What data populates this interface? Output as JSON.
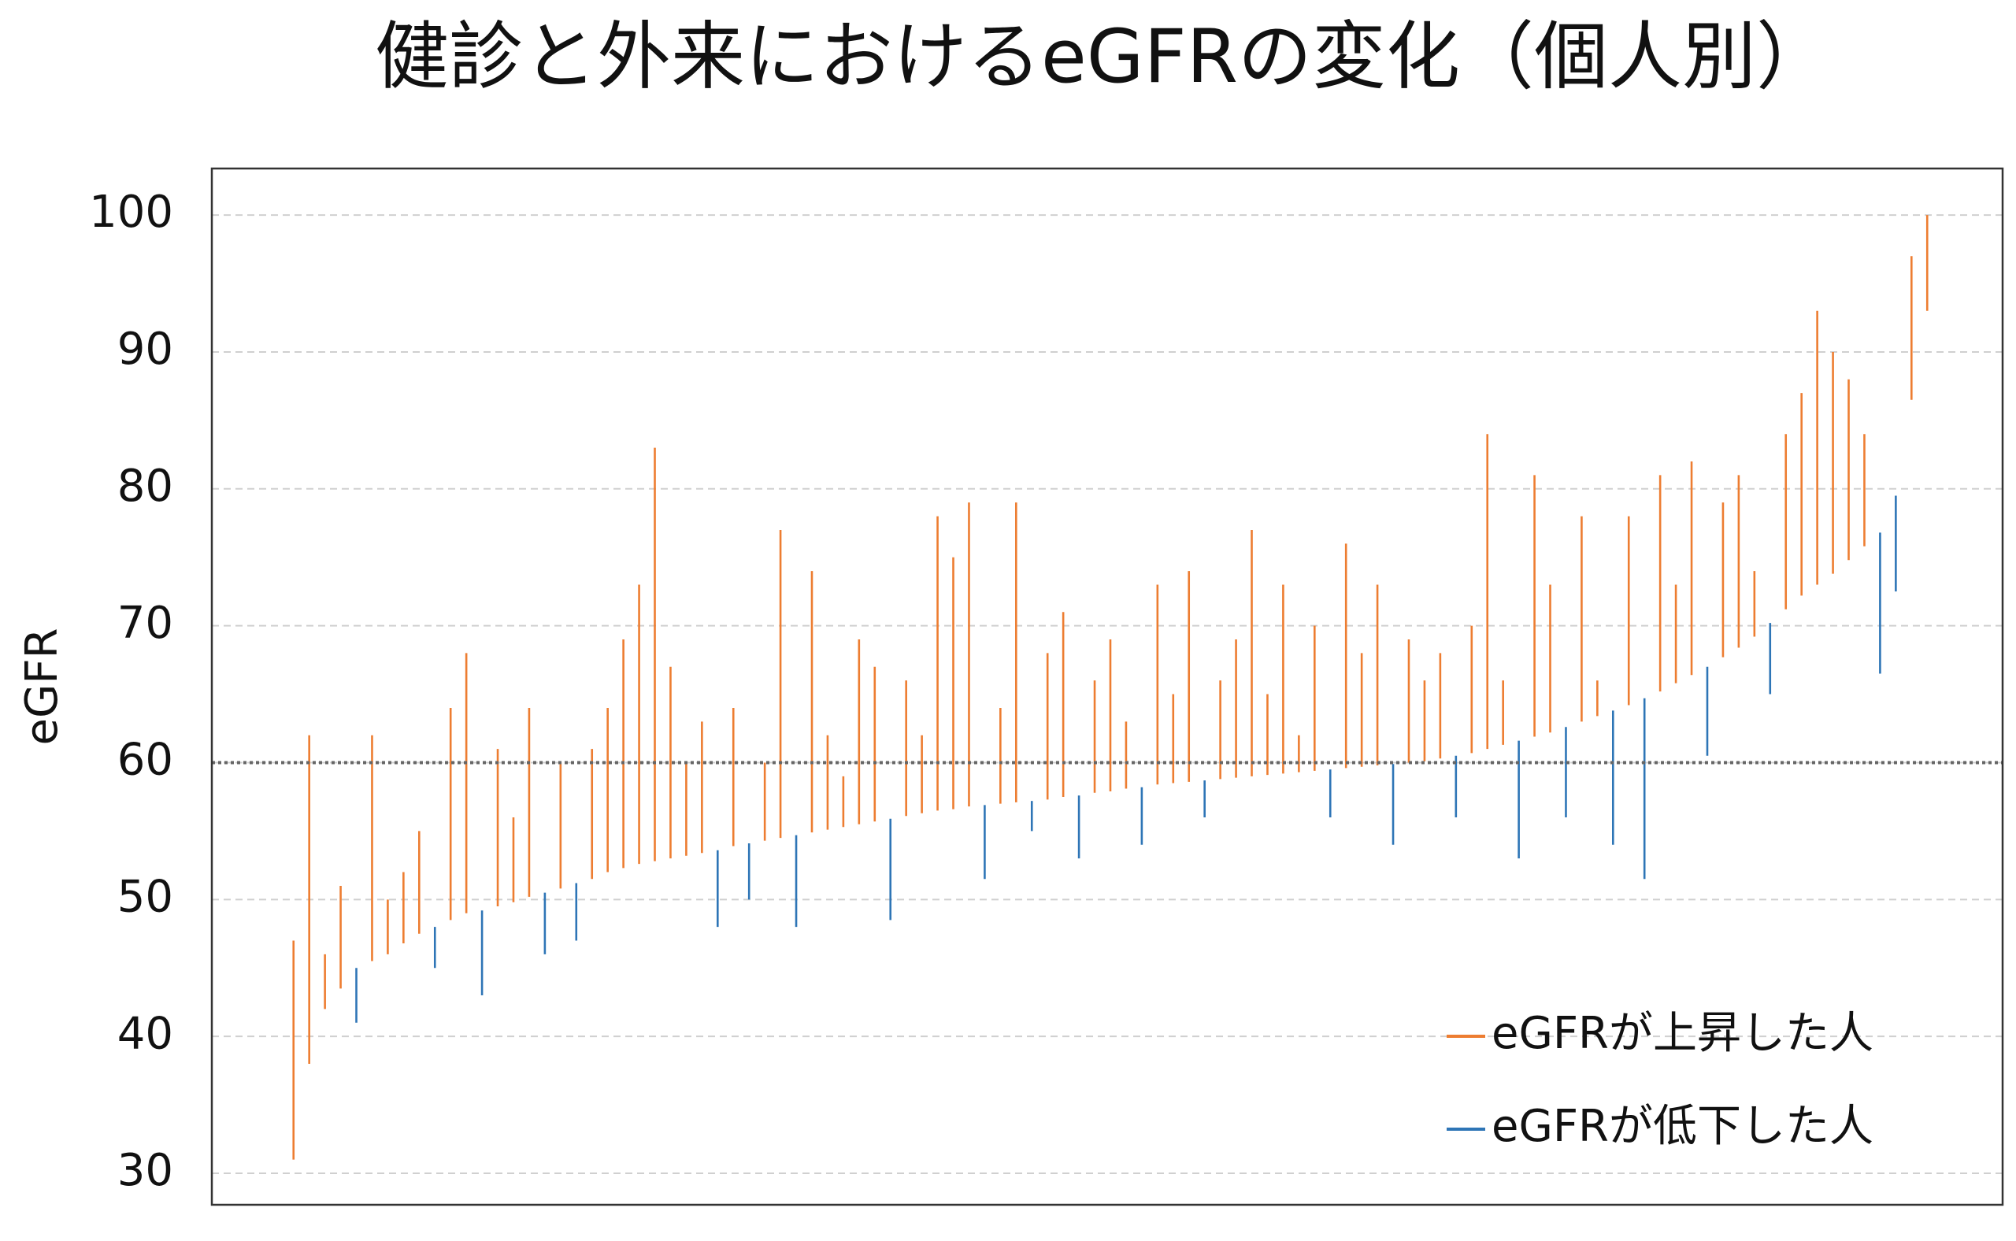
{
  "chart_data": {
    "type": "range",
    "title": "健診と外来におけるeGFRの変化（個人別）",
    "y_label": "eGFR",
    "x": [
      0,
      5,
      10,
      15,
      20,
      25,
      30,
      35,
      40,
      45,
      50,
      55,
      60,
      65,
      70,
      75,
      80,
      85,
      90,
      95,
      100,
      105,
      110,
      115,
      120,
      125,
      130,
      135,
      140,
      145,
      150,
      155,
      160,
      165,
      170,
      175,
      180,
      185,
      190,
      195,
      200,
      205,
      210,
      215,
      220,
      225,
      230,
      235,
      240,
      245,
      250,
      255,
      260,
      265,
      270,
      275,
      280,
      285,
      290,
      295,
      300,
      305,
      310,
      315,
      320,
      325,
      330,
      335,
      340,
      345,
      350,
      355,
      360,
      365,
      370,
      375,
      380,
      385,
      390,
      395,
      400,
      405,
      410,
      415,
      420,
      425,
      430,
      435,
      440,
      445,
      450,
      455,
      460,
      465,
      470,
      475,
      480,
      485,
      490,
      495,
      500,
      505,
      510,
      515,
      520
    ],
    "baseline": [
      31,
      38,
      42,
      43.5,
      45,
      45.5,
      46,
      46.8,
      47.5,
      48,
      48.5,
      49,
      49.2,
      49.5,
      49.8,
      50.2,
      50.5,
      50.8,
      51.2,
      51.5,
      52,
      52.3,
      52.6,
      52.8,
      53,
      53.2,
      53.4,
      53.6,
      53.9,
      54.1,
      54.3,
      54.5,
      54.7,
      54.9,
      55.1,
      55.3,
      55.5,
      55.7,
      55.9,
      56.1,
      56.3,
      56.5,
      56.6,
      56.8,
      56.9,
      57,
      57.1,
      57.2,
      57.3,
      57.5,
      57.6,
      57.8,
      57.9,
      58.1,
      58.2,
      58.4,
      58.5,
      58.6,
      58.7,
      58.8,
      58.9,
      59,
      59.1,
      59.2,
      59.3,
      59.4,
      59.5,
      59.6,
      59.7,
      59.8,
      59.9,
      60,
      60.1,
      60.3,
      60.5,
      60.7,
      61,
      61.3,
      61.6,
      61.9,
      62.2,
      62.6,
      63,
      63.4,
      63.8,
      64.2,
      64.7,
      65.2,
      65.8,
      66.4,
      67,
      67.7,
      68.4,
      69.2,
      70.2,
      71.2,
      72.2,
      73,
      73.8,
      74.8,
      75.8,
      76.8,
      79.5,
      86.5,
      93
    ],
    "series": [
      {
        "name": "eGFRが上昇した人",
        "color": "#ed7d31",
        "values": [
          47,
          62,
          46,
          51,
          null,
          62,
          50,
          52,
          55,
          null,
          64,
          68,
          null,
          61,
          56,
          64,
          null,
          60,
          null,
          61,
          64,
          69,
          73,
          83,
          67,
          60,
          63,
          null,
          64,
          null,
          60,
          77,
          null,
          74,
          62,
          59,
          69,
          67,
          null,
          66,
          62,
          78,
          75,
          79,
          null,
          64,
          79,
          null,
          68,
          71,
          null,
          66,
          69,
          63,
          null,
          73,
          65,
          74,
          null,
          66,
          69,
          77,
          65,
          73,
          62,
          70,
          null,
          76,
          68,
          73,
          null,
          69,
          66,
          68,
          null,
          70,
          84,
          66,
          null,
          81,
          73,
          null,
          78,
          66,
          null,
          78,
          null,
          81,
          73,
          82,
          null,
          79,
          81,
          74,
          null,
          84,
          87,
          93,
          90,
          88,
          84,
          null,
          null,
          97,
          100
        ]
      },
      {
        "name": "eGFRが低下した人",
        "color": "#2e75b6",
        "values": [
          null,
          null,
          null,
          null,
          41,
          null,
          null,
          null,
          null,
          45,
          null,
          null,
          43,
          null,
          null,
          null,
          46,
          null,
          47,
          null,
          null,
          null,
          null,
          null,
          null,
          null,
          null,
          48,
          null,
          50,
          null,
          null,
          48,
          null,
          null,
          null,
          null,
          null,
          48.5,
          null,
          null,
          null,
          null,
          null,
          51.5,
          null,
          null,
          55,
          null,
          null,
          53,
          null,
          null,
          null,
          54,
          null,
          null,
          null,
          56,
          null,
          null,
          null,
          null,
          null,
          null,
          null,
          56,
          null,
          null,
          null,
          54,
          null,
          null,
          null,
          56,
          null,
          null,
          null,
          53,
          null,
          null,
          56,
          null,
          null,
          54,
          null,
          51.5,
          null,
          null,
          null,
          60.5,
          null,
          null,
          null,
          65,
          null,
          null,
          null,
          null,
          null,
          null,
          66.5,
          72.5,
          null,
          null
        ]
      }
    ],
    "xlim": [
      -26,
      544
    ],
    "ylim": [
      27.7,
      103.4
    ],
    "yticks": [
      30,
      40,
      50,
      60,
      70,
      80,
      90,
      100
    ],
    "hline": 60,
    "grid": true,
    "legend": "lower right"
  }
}
